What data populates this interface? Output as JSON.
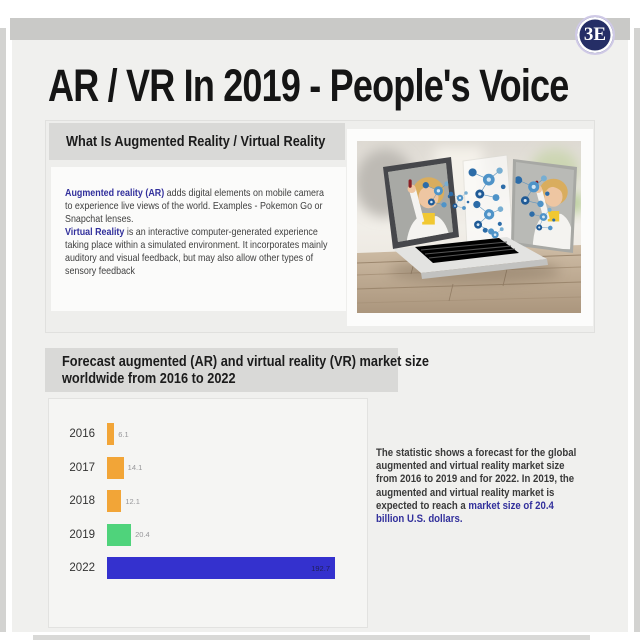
{
  "brand": {
    "logo_text": "3E",
    "logo_color": "#252e66"
  },
  "header": {
    "title": "AR / VR In 2019 - People's Voice"
  },
  "section_what_is": {
    "heading": "What Is Augmented Reality / Virtual Reality",
    "para1_lead": "Augmented reality (AR)",
    "para1_rest": " adds digital elements on mobile camera to experience live views of the world. Examples - Pokemon Go or Snapchat lenses.",
    "para2_lead": "Virtual Reality",
    "para2_rest": " is an interactive computer-generated experience taking place within a simulated environment. It incorporates mainly auditory and visual feedback, but may also allow other types of sensory feedback"
  },
  "section_forecast": {
    "heading_line1": "Forecast augmented (AR) and virtual reality (VR) market size",
    "heading_line2": "worldwide from 2016 to 2022",
    "description_normal": "The statistic shows a forecast for the global augmented and virtual reality market size from 2016 to 2019 and for 2022. In 2019, the augmented and virtual reality market is expected to reach a ",
    "description_highlight": "market size of 20.4 billion U.S. dollars."
  },
  "chart_data": {
    "type": "bar",
    "orientation": "horizontal",
    "title": "Forecast augmented (AR) and virtual reality (VR) market size worldwide from 2016 to 2022",
    "unit": "billion U.S. dollars",
    "categories": [
      "2016",
      "2017",
      "2018",
      "2019",
      "2022"
    ],
    "values": [
      6.1,
      14.1,
      12.1,
      20.4,
      192.7
    ],
    "value_labels": [
      "6.1",
      "14.1",
      "12.1",
      "20.4",
      "192.7"
    ],
    "bar_colors": [
      "#f2a537",
      "#f2a537",
      "#f2a537",
      "#4fd37b",
      "#3431ce"
    ],
    "xlim": [
      0,
      195
    ],
    "grid": false,
    "legend": false
  },
  "colors": {
    "page_background": "#f0f0ee",
    "header_bar": "#d9d9d7",
    "accent_indigo": "#32309c",
    "bar_orange": "#f2a537",
    "bar_green": "#4fd37b",
    "bar_blue": "#3431ce"
  }
}
